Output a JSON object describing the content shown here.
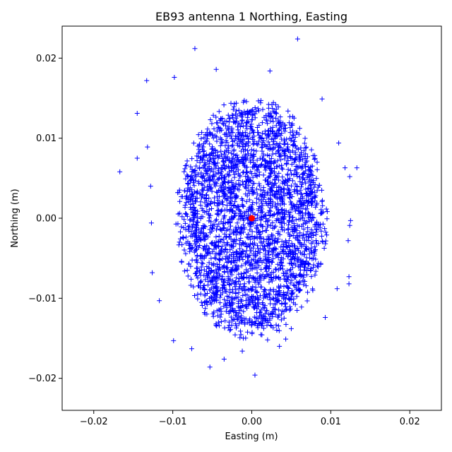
{
  "chart_data": {
    "type": "scatter",
    "title": "EB93 antenna 1 Northing, Easting",
    "xlabel": "Easting (m)",
    "ylabel": "Northing (m)",
    "xlim": [
      -0.024,
      0.024
    ],
    "ylim": [
      -0.024,
      0.024
    ],
    "xticks": [
      -0.02,
      -0.01,
      0.0,
      0.01,
      0.02
    ],
    "yticks": [
      -0.02,
      -0.01,
      0.0,
      0.01,
      0.02
    ],
    "xtick_labels": [
      "−0.02",
      "−0.01",
      "0.00",
      "0.01",
      "0.02"
    ],
    "ytick_labels": [
      "−0.02",
      "−0.01",
      "0.00",
      "0.01",
      "0.02"
    ],
    "grid": false,
    "series": [
      {
        "marker": "plus",
        "color": "#0000ff",
        "distribution": {
          "center": [
            0.0,
            0.0
          ],
          "core_semi_axes": [
            0.0085,
            0.0135
          ],
          "count": 2600
        },
        "outliers": [
          [
            -0.0167,
            0.0058
          ],
          [
            0.0058,
            0.0224
          ],
          [
            -0.0072,
            0.0212
          ],
          [
            -0.0098,
            0.0176
          ],
          [
            0.0023,
            0.0184
          ],
          [
            -0.0045,
            0.0186
          ],
          [
            -0.0133,
            0.0172
          ],
          [
            -0.0145,
            0.0131
          ],
          [
            -0.0145,
            0.0075
          ],
          [
            -0.0132,
            0.0089
          ],
          [
            -0.0128,
            0.004
          ],
          [
            -0.0127,
            -0.0006
          ],
          [
            -0.0126,
            -0.0068
          ],
          [
            -0.0117,
            -0.0103
          ],
          [
            -0.0099,
            -0.0153
          ],
          [
            -0.0076,
            -0.0163
          ],
          [
            -0.0053,
            -0.0186
          ],
          [
            -0.0035,
            -0.0176
          ],
          [
            0.0004,
            -0.0196
          ],
          [
            -0.0012,
            -0.0166
          ],
          [
            0.0089,
            0.0149
          ],
          [
            0.011,
            0.0094
          ],
          [
            0.0118,
            0.0063
          ],
          [
            0.0133,
            0.0063
          ],
          [
            0.0124,
            0.0052
          ],
          [
            0.0125,
            -0.0003
          ],
          [
            0.0124,
            -0.0009
          ],
          [
            0.0122,
            -0.0028
          ],
          [
            0.0123,
            -0.0073
          ],
          [
            0.0123,
            -0.0082
          ],
          [
            0.0108,
            -0.0088
          ],
          [
            0.0093,
            -0.0124
          ],
          [
            0.005,
            -0.0138
          ],
          [
            0.0043,
            -0.0151
          ],
          [
            0.0035,
            -0.016
          ],
          [
            0.002,
            -0.0152
          ]
        ]
      },
      {
        "marker": "circle",
        "color": "#ff0000",
        "points": [
          [
            0.0,
            0.0
          ]
        ]
      }
    ]
  }
}
